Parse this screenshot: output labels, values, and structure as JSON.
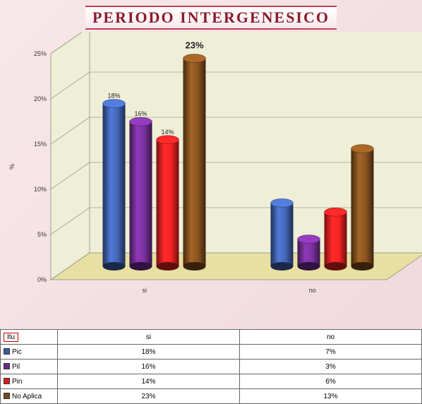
{
  "title": "PERIODO INTERGENESICO",
  "chart": {
    "type": "bar-3d-cylinder",
    "ylabel": "%",
    "ylim": [
      0,
      25
    ],
    "ytick_step": 5,
    "yticks": [
      "0%",
      "5%",
      "10%",
      "15%",
      "20%",
      "25%"
    ],
    "categories": [
      "si",
      "no"
    ],
    "series": [
      {
        "name": "Pic",
        "color": "#3b5aa0",
        "values": [
          18,
          7
        ]
      },
      {
        "name": "Pil",
        "color": "#6b2b8a",
        "values": [
          16,
          3
        ]
      },
      {
        "name": "Pin",
        "color": "#d81e1e",
        "values": [
          14,
          6
        ]
      },
      {
        "name": "No Aplica",
        "color": "#7a4a1c",
        "values": [
          23,
          13
        ]
      }
    ],
    "highlight_label": {
      "text": "23%",
      "category": 0,
      "series": 3
    },
    "floor_color": "#e8e0a2",
    "wall_color": "#efefd8",
    "grid_color": "#9aa090",
    "background": "#f4e0e4"
  },
  "table": {
    "header_label": "Itu",
    "columns": [
      "si",
      "no"
    ],
    "rows": [
      {
        "label": "Pic",
        "color": "#3b5aa0",
        "cells": [
          "18%",
          "7%"
        ]
      },
      {
        "label": "Pil",
        "color": "#6b2b8a",
        "cells": [
          "16%",
          "3%"
        ]
      },
      {
        "label": "Pin",
        "color": "#d81e1e",
        "cells": [
          "14%",
          "6%"
        ]
      },
      {
        "label": "No Aplica",
        "color": "#7a4a1c",
        "cells": [
          "23%",
          "13%"
        ]
      }
    ]
  }
}
